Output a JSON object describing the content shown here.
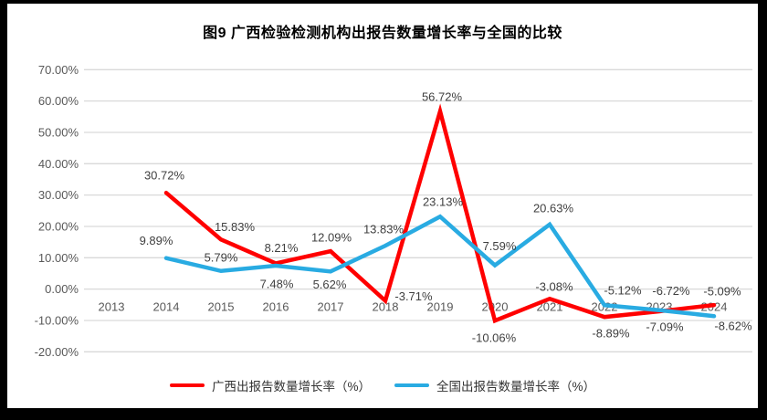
{
  "title": "图9 广西检验检测机构出报告数量增长率与全国的比较",
  "chart_data": {
    "type": "line",
    "categories": [
      "2013",
      "2014",
      "2015",
      "2016",
      "2017",
      "2018",
      "2019",
      "2020",
      "2021",
      "2022",
      "2023",
      "2024"
    ],
    "series": [
      {
        "name": "广西出报告数量增长率（%）",
        "color": "#FF0000",
        "values": [
          null,
          30.72,
          15.83,
          8.21,
          12.09,
          -3.71,
          56.72,
          -10.06,
          -3.08,
          -8.89,
          -7.09,
          -5.09
        ],
        "labels": [
          "",
          "30.72%",
          "15.83%",
          "8.21%",
          "12.09%",
          "-3.71%",
          "56.72%",
          "-10.06%",
          "-3.08%",
          "-8.89%",
          "-7.09%",
          "-5.09%"
        ]
      },
      {
        "name": "全国出报告数量增长率（%）",
        "color": "#29ABE2",
        "values": [
          null,
          9.89,
          5.79,
          7.48,
          5.62,
          13.83,
          23.13,
          7.59,
          20.63,
          -5.12,
          -6.72,
          -8.62
        ],
        "labels": [
          "",
          "9.89%",
          "5.79%",
          "7.48%",
          "5.62%",
          "13.83%",
          "23.13%",
          "7.59%",
          "20.63%",
          "-5.12%",
          "-6.72%",
          "-8.62%"
        ]
      }
    ],
    "ylim": [
      -20,
      70
    ],
    "ytick_step": 10,
    "ytick_labels": [
      "70.00%",
      "60.00%",
      "50.00%",
      "40.00%",
      "30.00%",
      "20.00%",
      "10.00%",
      "0.00%",
      "-10.00%",
      "-20.00%"
    ],
    "grid": true,
    "legend_position": "bottom",
    "colors": {
      "gridline": "#D9D9D9",
      "axis_text": "#595959",
      "data_label_text": "#404040"
    }
  }
}
